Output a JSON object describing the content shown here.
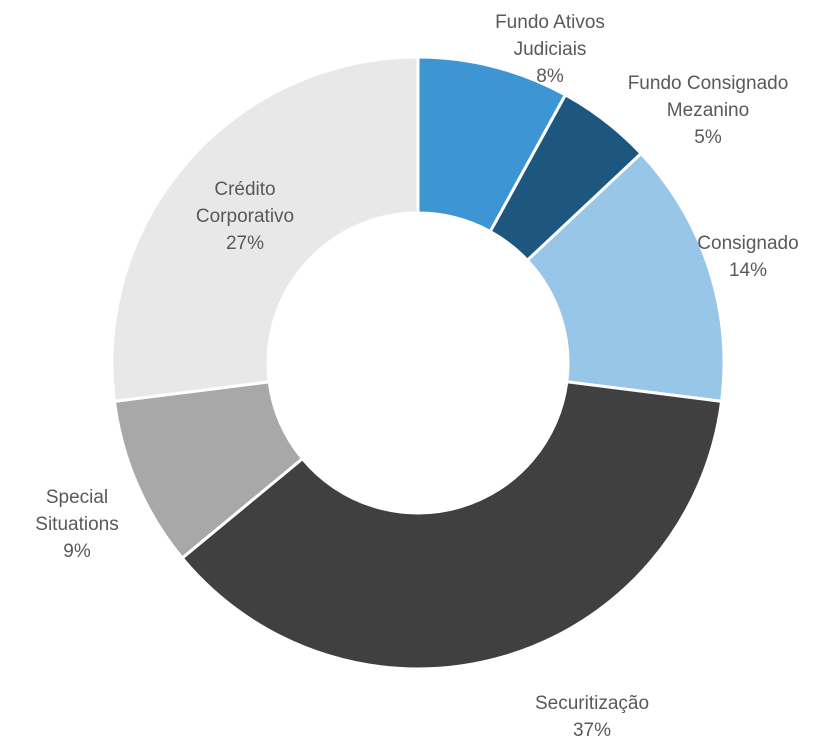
{
  "chart_data": {
    "type": "donut",
    "categories": [
      "Fundo Ativos Judiciais",
      "Fundo Consignado Mezanino",
      "Consignado",
      "Securitização",
      "Special Situations",
      "Crédito Corporativo"
    ],
    "values": [
      8,
      5,
      14,
      37,
      9,
      27
    ],
    "value_labels": [
      "8%",
      "5%",
      "14%",
      "37%",
      "9%",
      "27%"
    ],
    "colors": [
      "#3e95d3",
      "#1d567e",
      "#98c6e8",
      "#404040",
      "#a8a8a8",
      "#e8e8e8"
    ]
  }
}
